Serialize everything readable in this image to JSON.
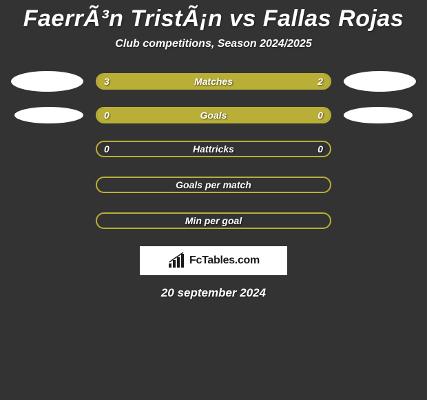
{
  "title": "FaerrÃ³n TristÃ¡n vs Fallas Rojas",
  "subtitle": "Club competitions, Season 2024/2025",
  "date": "20 september 2024",
  "logo_text": "FcTables.com",
  "background_color": "#333333",
  "text_color": "#ffffff",
  "bars_width": 342,
  "stats": [
    {
      "label": "Matches",
      "left_value": "3",
      "right_value": "2",
      "left_fill": 0.6,
      "right_fill": 0.4,
      "left_color": "#b9af37",
      "right_color": "#b9af37",
      "border_color": "#b9af37",
      "has_ellipses": true,
      "ellipse_size": "large"
    },
    {
      "label": "Goals",
      "left_value": "0",
      "right_value": "0",
      "left_fill": 0.5,
      "right_fill": 0.5,
      "left_color": "#b9af37",
      "right_color": "#b9af37",
      "border_color": "#b9af37",
      "has_ellipses": true,
      "ellipse_size": "small"
    },
    {
      "label": "Hattricks",
      "left_value": "0",
      "right_value": "0",
      "left_fill": 0.0,
      "right_fill": 0.0,
      "left_color": "transparent",
      "right_color": "transparent",
      "border_color": "#b9af37",
      "has_ellipses": false
    },
    {
      "label": "Goals per match",
      "left_value": "",
      "right_value": "",
      "left_fill": 0.0,
      "right_fill": 0.0,
      "left_color": "transparent",
      "right_color": "transparent",
      "border_color": "#b9af37",
      "has_ellipses": false
    },
    {
      "label": "Min per goal",
      "left_value": "",
      "right_value": "",
      "left_fill": 0.0,
      "right_fill": 0.0,
      "left_color": "transparent",
      "right_color": "transparent",
      "border_color": "#b9af37",
      "has_ellipses": false
    }
  ]
}
